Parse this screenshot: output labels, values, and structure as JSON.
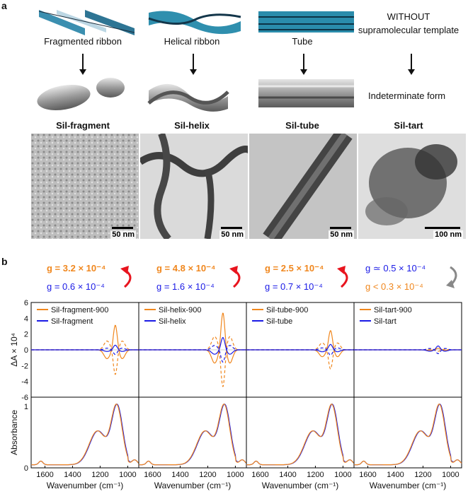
{
  "panel_a": {
    "letter": "a",
    "columns": [
      {
        "template_label": "Fragmented ribbon",
        "sample": "Sil-fragment",
        "scale": "50 nm"
      },
      {
        "template_label": "Helical ribbon",
        "sample": "Sil-helix",
        "scale": "50 nm"
      },
      {
        "template_label": "Tube",
        "sample": "Sil-tube",
        "scale": "50 nm"
      },
      {
        "template_label": "WITHOUT supramolecular template",
        "sample": "Sil-tart",
        "scale": "100 nm"
      }
    ],
    "indeterminate": "Indeterminate form"
  },
  "panel_b": {
    "letter": "b",
    "g_values": [
      {
        "top": "g = 3.2 × 10⁻⁴",
        "bottom": "g = 0.6 × 10⁻⁴"
      },
      {
        "top": "g = 4.8 × 10⁻⁴",
        "bottom": "g = 1.6 × 10⁻⁴"
      },
      {
        "top": "g = 2.5 × 10⁻⁴",
        "bottom": "g = 0.7 × 10⁻⁴"
      },
      {
        "top": "g ≃ 0.5 × 10⁻⁴",
        "bottom": "g < 0.3 × 10⁻⁴"
      }
    ],
    "cd_ylabel": "ΔA × 10⁴",
    "abs_ylabel": "Absorbance",
    "xlabel": "Wavenumber (cm⁻¹)",
    "colors": {
      "orange": "#f0871e",
      "blue": "#1a1ae6",
      "red_arrow": "#e8141e",
      "grey_arrow": "#888888"
    }
  },
  "chart_data": [
    {
      "type": "line",
      "panel": "cd-fragment",
      "xlim": [
        1700,
        920
      ],
      "ylim": [
        -6,
        6
      ],
      "series": [
        {
          "name": "Sil-fragment-900",
          "peak_x": 1090,
          "peak_y": 3.2
        },
        {
          "name": "Sil-fragment",
          "peak_x": 1090,
          "peak_y": 0.6
        }
      ]
    },
    {
      "type": "line",
      "panel": "cd-helix",
      "xlim": [
        1700,
        920
      ],
      "ylim": [
        -6,
        6
      ],
      "series": [
        {
          "name": "Sil-helix-900",
          "peak_x": 1090,
          "peak_y": 4.8
        },
        {
          "name": "Sil-helix",
          "peak_x": 1090,
          "peak_y": 1.6
        }
      ]
    },
    {
      "type": "line",
      "panel": "cd-tube",
      "xlim": [
        1700,
        920
      ],
      "ylim": [
        -6,
        6
      ],
      "series": [
        {
          "name": "Sil-tube-900",
          "peak_x": 1090,
          "peak_y": 2.5
        },
        {
          "name": "Sil-tube",
          "peak_x": 1090,
          "peak_y": 0.7
        }
      ]
    },
    {
      "type": "line",
      "panel": "cd-tart",
      "xlim": [
        1700,
        920
      ],
      "ylim": [
        -6,
        6
      ],
      "series": [
        {
          "name": "Sil-tart-900",
          "peak_x": 1090,
          "peak_y": 0.2
        },
        {
          "name": "Sil-tart",
          "peak_x": 1090,
          "peak_y": 0.5
        }
      ]
    },
    {
      "type": "line",
      "panel": "absorbance",
      "xlim": [
        1700,
        920
      ],
      "ylim": [
        0,
        1.15
      ],
      "x_ticks": [
        1600,
        1400,
        1200,
        1000
      ],
      "y_ticks": [
        0,
        1
      ],
      "series": [
        {
          "peak_x": 1080,
          "peak_y": 1.0
        }
      ]
    }
  ]
}
